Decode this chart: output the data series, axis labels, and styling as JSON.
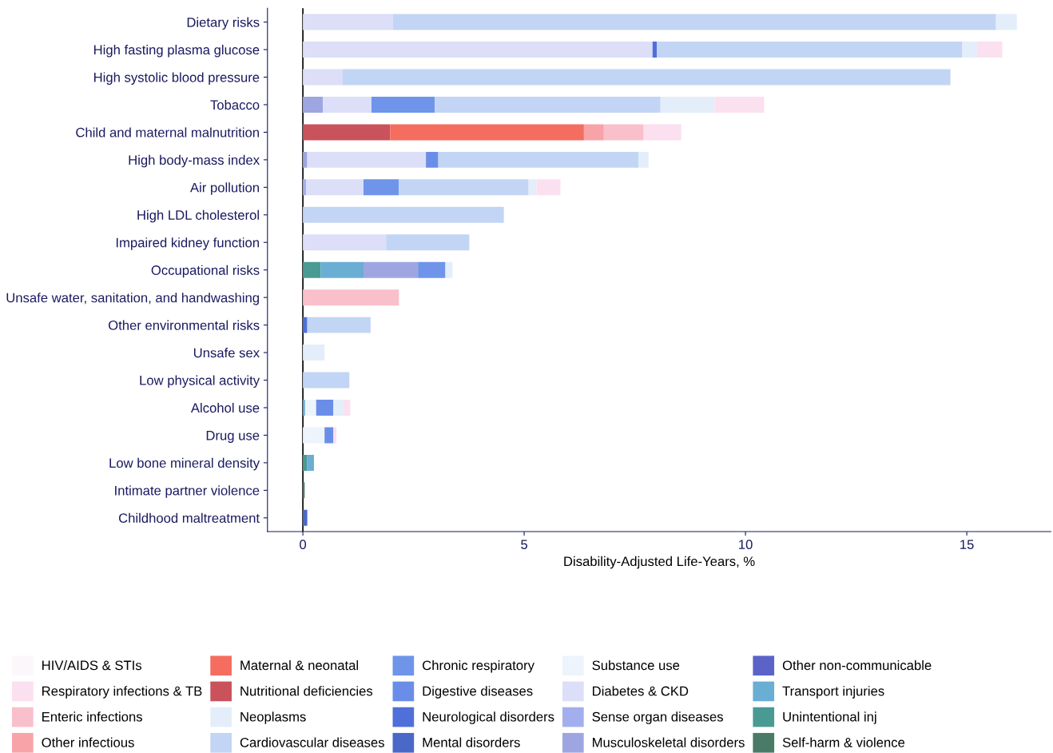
{
  "chart_data": {
    "type": "bar",
    "orientation": "horizontal",
    "stacked": true,
    "xlabel": "Disability-Adjusted Life-Years, %",
    "categories": [
      "Dietary risks",
      "High fasting plasma glucose",
      "High systolic blood pressure",
      "Tobacco",
      "Child and maternal malnutrition",
      "High body-mass index",
      "Air pollution",
      "High LDL cholesterol",
      "Impaired kidney function",
      "Occupational risks",
      "Unsafe water, sanitation, and handwashing",
      "Other environmental risks",
      "Unsafe sex",
      "Low physical activity",
      "Alcohol use",
      "Drug use",
      "Low bone mineral density",
      "Intimate partner violence",
      "Childhood maltreatment"
    ],
    "xlim": [
      -0.8,
      16.9
    ],
    "xticks": [
      0,
      5,
      10,
      15
    ],
    "grid": false,
    "legend": "bottom",
    "ref_lines": [
      {
        "axis": "x",
        "value": 0,
        "color": "#000000"
      }
    ],
    "series": [
      {
        "name": "Self-harm & violence",
        "color": "#4a7a68",
        "values": [
          null,
          null,
          null,
          null,
          null,
          null,
          null,
          null,
          null,
          null,
          null,
          null,
          null,
          null,
          null,
          null,
          null,
          0.04,
          null
        ]
      },
      {
        "name": "Unintentional inj",
        "color": "#4a9a94",
        "values": [
          null,
          null,
          null,
          null,
          null,
          null,
          null,
          null,
          null,
          0.4,
          null,
          null,
          null,
          null,
          null,
          null,
          0.1,
          null,
          null
        ]
      },
      {
        "name": "Transport injuries",
        "color": "#6aaed4",
        "values": [
          null,
          null,
          null,
          null,
          null,
          null,
          null,
          null,
          null,
          0.97,
          null,
          null,
          null,
          null,
          0.05,
          null,
          0.15,
          null,
          null
        ]
      },
      {
        "name": "Other non-communicable",
        "color": "#5b63c8",
        "values": [
          null,
          null,
          null,
          null,
          null,
          null,
          null,
          null,
          null,
          null,
          null,
          null,
          null,
          null,
          null,
          null,
          null,
          null,
          null
        ]
      },
      {
        "name": "Musculoskeletal disorders",
        "color": "#9ea6e2",
        "values": [
          null,
          null,
          null,
          0.45,
          null,
          0.1,
          null,
          null,
          null,
          1.23,
          null,
          null,
          null,
          null,
          null,
          null,
          null,
          null,
          null
        ]
      },
      {
        "name": "Sense organ diseases",
        "color": "#a3aeee",
        "values": [
          null,
          null,
          null,
          null,
          null,
          null,
          0.07,
          null,
          null,
          null,
          null,
          null,
          null,
          null,
          null,
          null,
          null,
          null,
          null
        ]
      },
      {
        "name": "Diabetes & CKD",
        "color": "#dcdff7",
        "values": [
          2.03,
          7.9,
          0.89,
          1.1,
          null,
          2.68,
          1.3,
          null,
          1.88,
          null,
          null,
          null,
          null,
          null,
          null,
          null,
          null,
          null,
          null
        ]
      },
      {
        "name": "Substance use",
        "color": "#eef4fb",
        "values": [
          null,
          null,
          null,
          null,
          null,
          null,
          null,
          null,
          null,
          null,
          null,
          null,
          null,
          null,
          0.25,
          0.49,
          null,
          null,
          null
        ]
      },
      {
        "name": "Mental disorders",
        "color": "#4a68c8",
        "values": [
          null,
          null,
          null,
          null,
          null,
          null,
          null,
          null,
          null,
          null,
          null,
          null,
          null,
          null,
          null,
          null,
          null,
          null,
          0.1
        ]
      },
      {
        "name": "Neurological disorders",
        "color": "#4e70d8",
        "values": [
          null,
          0.1,
          null,
          null,
          null,
          null,
          null,
          null,
          null,
          null,
          null,
          0.1,
          null,
          null,
          null,
          null,
          null,
          null,
          null
        ]
      },
      {
        "name": "Digestive diseases",
        "color": "#6a8ee8",
        "values": [
          null,
          null,
          null,
          null,
          null,
          0.28,
          null,
          null,
          null,
          null,
          null,
          null,
          null,
          null,
          0.39,
          0.2,
          null,
          null,
          null
        ]
      },
      {
        "name": "Chronic respiratory",
        "color": "#6e95ea",
        "values": [
          null,
          null,
          null,
          1.43,
          null,
          null,
          0.8,
          null,
          null,
          0.62,
          null,
          null,
          null,
          null,
          null,
          null,
          null,
          null,
          null
        ]
      },
      {
        "name": "Cardiovascular diseases",
        "color": "#c3d5f4",
        "values": [
          13.63,
          6.9,
          13.74,
          5.1,
          null,
          4.52,
          2.93,
          4.54,
          1.88,
          null,
          null,
          1.43,
          null,
          1.05,
          null,
          null,
          null,
          null,
          null
        ]
      },
      {
        "name": "Neoplasms",
        "color": "#e3eefa",
        "values": [
          0.47,
          0.33,
          null,
          1.22,
          null,
          0.23,
          0.18,
          null,
          null,
          0.16,
          null,
          null,
          0.49,
          null,
          0.23,
          null,
          null,
          null,
          null
        ]
      },
      {
        "name": "Nutritional deficiencies",
        "color": "#c9525b",
        "values": [
          null,
          null,
          null,
          null,
          1.97,
          null,
          null,
          null,
          null,
          null,
          null,
          null,
          null,
          null,
          null,
          null,
          null,
          null,
          null
        ]
      },
      {
        "name": "Maternal & neonatal",
        "color": "#f46d5e",
        "values": [
          null,
          null,
          null,
          null,
          4.38,
          null,
          null,
          null,
          null,
          null,
          null,
          null,
          null,
          null,
          null,
          null,
          null,
          null,
          null
        ]
      },
      {
        "name": "Other infectious",
        "color": "#f7a3a8",
        "values": [
          null,
          null,
          null,
          null,
          0.45,
          null,
          null,
          null,
          null,
          null,
          null,
          null,
          null,
          null,
          null,
          null,
          null,
          null,
          null
        ]
      },
      {
        "name": "Enteric infections",
        "color": "#f9c0cc",
        "values": [
          null,
          null,
          null,
          null,
          0.9,
          null,
          null,
          null,
          null,
          null,
          2.17,
          null,
          null,
          null,
          null,
          null,
          null,
          null,
          null
        ]
      },
      {
        "name": "Respiratory infections & TB",
        "color": "#fbe0ef",
        "values": [
          null,
          0.57,
          null,
          1.12,
          0.85,
          null,
          0.54,
          null,
          null,
          null,
          null,
          null,
          null,
          null,
          0.15,
          0.07,
          null,
          null,
          null
        ]
      },
      {
        "name": "HIV/AIDS & STIs",
        "color": "#fbf7fa",
        "values": [
          null,
          null,
          null,
          null,
          null,
          null,
          null,
          null,
          null,
          null,
          null,
          null,
          null,
          null,
          null,
          null,
          null,
          null,
          null
        ]
      }
    ]
  }
}
